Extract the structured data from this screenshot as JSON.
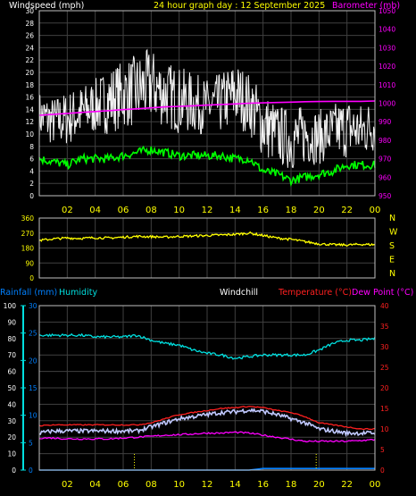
{
  "colors": {
    "background": "#000000",
    "frame": "#c0c0c0",
    "grid": "#404040",
    "axis_text": "#ffffff",
    "time_text": "#ffff00",
    "windspeed_label": "#ffffff",
    "title": "#ffff00",
    "barometer": "#ff00ff",
    "wind_line": "#ffffff",
    "gust_line": "#ffffff",
    "avg_wind": "#00ff00",
    "direction": "#ffff00",
    "compass_text": "#ffff00",
    "rainfall": "#0080ff",
    "humidity": "#00e0e0",
    "windchill": "#c0c8ff",
    "temperature": "#ff2020",
    "dewpoint": "#ff00ff",
    "rain_marker": "#ffff00"
  },
  "chart_data": [
    {
      "type": "line",
      "id": "wind",
      "title": "24 hour graph day : 12 September 2025",
      "ylabel_left": "Windspeed (mph)",
      "ylabel_right": "Barometer (mb)",
      "ylim": [
        0,
        30
      ],
      "ylim_right": [
        950,
        1050
      ],
      "yticks": [
        0,
        2,
        4,
        6,
        8,
        10,
        12,
        14,
        16,
        18,
        20,
        22,
        24,
        26,
        28,
        30
      ],
      "yticks_right": [
        950,
        960,
        970,
        980,
        990,
        1000,
        1010,
        1020,
        1030,
        1040,
        1050
      ],
      "x_hours": [
        0,
        1,
        2,
        3,
        4,
        5,
        6,
        7,
        8,
        9,
        10,
        11,
        12,
        13,
        14,
        15,
        16,
        17,
        18,
        19,
        20,
        21,
        22,
        23,
        24
      ],
      "grid": true,
      "series": [
        {
          "key": "gust_high",
          "values": [
            17,
            16,
            17,
            18,
            19,
            21,
            22,
            23,
            24,
            22,
            21,
            20,
            19,
            20,
            22,
            20,
            17,
            15,
            14,
            15,
            14,
            15,
            16,
            15,
            16
          ]
        },
        {
          "key": "gust_low",
          "values": [
            9,
            8,
            8,
            9,
            10,
            10,
            11,
            11,
            12,
            11,
            10,
            10,
            10,
            10,
            11,
            10,
            6,
            5,
            4,
            5,
            5,
            6,
            6,
            6,
            7
          ]
        },
        {
          "key": "avg",
          "values": [
            6,
            5.5,
            5,
            6,
            6,
            6,
            6.5,
            7,
            7.5,
            7,
            6.5,
            6.5,
            6.5,
            6.5,
            6,
            6,
            4,
            3.5,
            2.5,
            3,
            3.5,
            4,
            5,
            5,
            5
          ]
        },
        {
          "key": "barometer",
          "axis": "right",
          "values": [
            993.5,
            994,
            994.5,
            995,
            995.5,
            996,
            996.5,
            997,
            997.5,
            998,
            998.3,
            998.6,
            999,
            999.3,
            999.6,
            1000,
            1000.2,
            1000.4,
            1000.6,
            1000.8,
            1000.9,
            1001,
            1001,
            1001,
            1001.2
          ]
        }
      ],
      "xticks": [
        "02",
        "04",
        "06",
        "08",
        "10",
        "12",
        "14",
        "16",
        "18",
        "20",
        "22",
        "00"
      ]
    },
    {
      "type": "line",
      "id": "direction",
      "ylim": [
        0,
        360
      ],
      "yticks": [
        0,
        90,
        180,
        270,
        360
      ],
      "compass": [
        "N",
        "W",
        "S",
        "E",
        "N"
      ],
      "x_hours": [
        0,
        1,
        2,
        3,
        4,
        5,
        6,
        7,
        8,
        9,
        10,
        11,
        12,
        13,
        14,
        15,
        16,
        17,
        18,
        19,
        20,
        21,
        22,
        23,
        24
      ],
      "values": [
        225,
        235,
        240,
        238,
        242,
        240,
        245,
        250,
        248,
        245,
        250,
        252,
        255,
        258,
        262,
        270,
        255,
        240,
        232,
        218,
        205,
        200,
        198,
        202,
        200
      ],
      "grid": true
    },
    {
      "type": "line",
      "id": "temperature",
      "legend": [
        "Rainfall (mm)",
        "Humidity",
        "Windchill",
        "Temperature (°C)",
        "Dew Point (°C)"
      ],
      "ylim_humidity": [
        0,
        100
      ],
      "yticks_humidity": [
        0,
        10,
        20,
        30,
        40,
        50,
        60,
        70,
        80,
        90,
        100
      ],
      "ylim_rain": [
        0,
        30
      ],
      "yticks_rain": [
        0,
        5,
        10,
        15,
        20,
        25,
        30
      ],
      "ylim_temp": [
        0,
        40
      ],
      "yticks_temp": [
        0,
        5,
        10,
        15,
        20,
        25,
        30,
        35,
        40
      ],
      "x_hours": [
        0,
        1,
        2,
        3,
        4,
        5,
        6,
        7,
        8,
        9,
        10,
        11,
        12,
        13,
        14,
        15,
        16,
        17,
        18,
        19,
        20,
        21,
        22,
        23,
        24
      ],
      "series": [
        {
          "key": "humidity",
          "values": [
            82,
            82,
            82,
            82,
            81,
            81,
            81,
            82,
            79,
            77,
            76,
            73,
            71,
            70,
            68,
            69,
            70,
            70,
            70,
            70,
            73,
            77,
            79,
            79,
            80
          ]
        },
        {
          "key": "temperature",
          "values": [
            10.8,
            11,
            11,
            11,
            11,
            11,
            11,
            11,
            11.5,
            12.5,
            13.5,
            14,
            14.5,
            15,
            15.2,
            15.5,
            15.2,
            14.5,
            14,
            13,
            11.5,
            11,
            10.5,
            10,
            10
          ]
        },
        {
          "key": "windchill",
          "values": [
            9,
            9.5,
            9.5,
            9.5,
            9.5,
            9.5,
            9.5,
            9.5,
            10.5,
            11.5,
            12.5,
            13,
            13.5,
            14,
            14.2,
            14.6,
            14.3,
            13.5,
            12.5,
            11.5,
            10,
            9.5,
            9,
            9,
            9
          ]
        },
        {
          "key": "dewpoint",
          "values": [
            7.8,
            7.8,
            7.6,
            7.6,
            7.6,
            7.6,
            7.8,
            8,
            8.2,
            8.5,
            8.6,
            8.8,
            9,
            9,
            9.2,
            9,
            8.5,
            8,
            7.5,
            7,
            7,
            7,
            7,
            7.2,
            7.4
          ]
        },
        {
          "key": "rainfall",
          "values": [
            0,
            0,
            0,
            0,
            0,
            0,
            0,
            0,
            0,
            0,
            0,
            0,
            0,
            0,
            0,
            0,
            0.3,
            0.3,
            0.3,
            0.3,
            0.3,
            0.3,
            0.3,
            0.3,
            0.3
          ]
        }
      ],
      "rain_markers_hours": [
        6.8,
        19.8
      ],
      "xticks": [
        "02",
        "04",
        "06",
        "08",
        "10",
        "12",
        "14",
        "16",
        "18",
        "20",
        "22",
        "00"
      ]
    }
  ]
}
